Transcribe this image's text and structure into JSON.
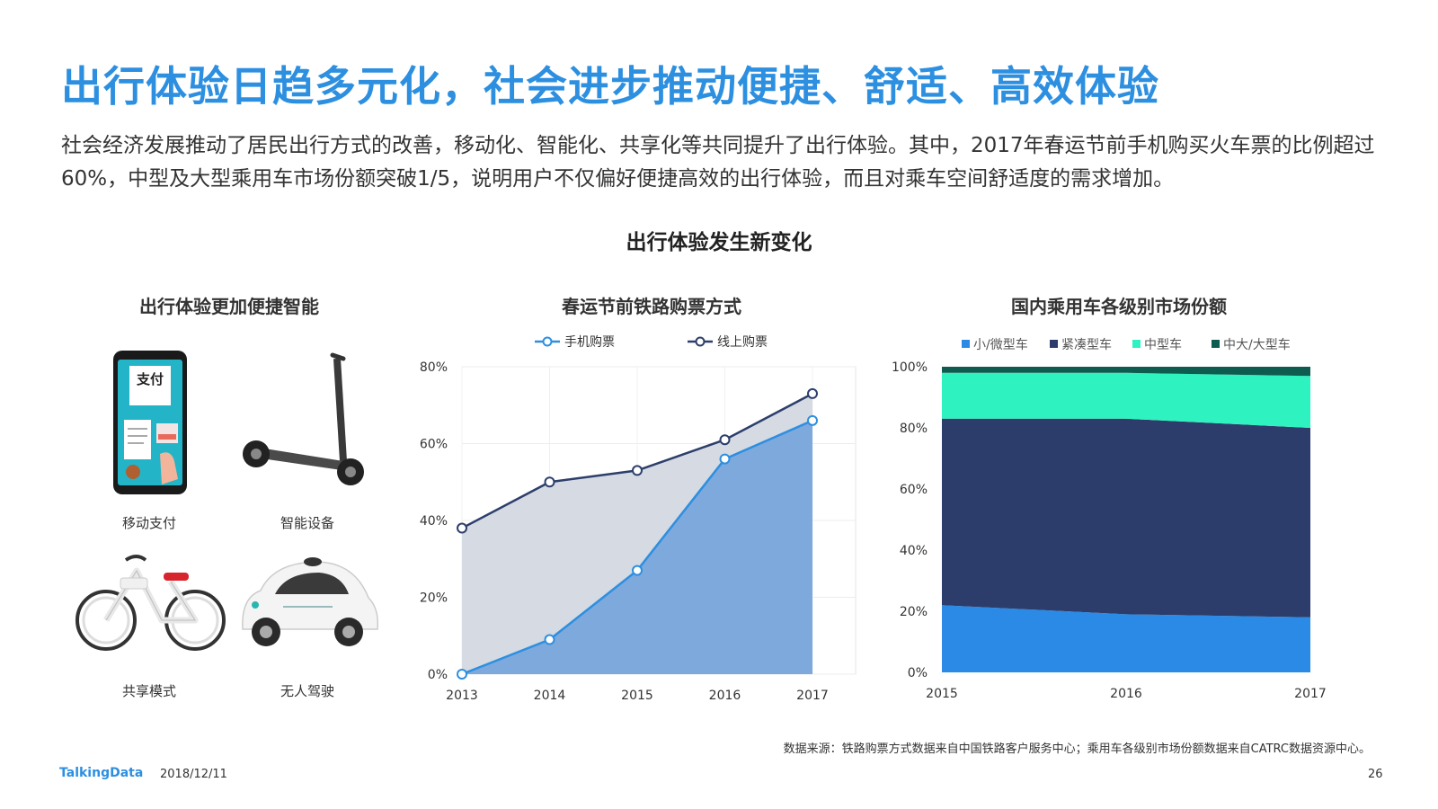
{
  "page": {
    "title": "出行体验日趋多元化，社会进步推动便捷、舒适、高效体验",
    "description": "社会经济发展推动了居民出行方式的改善，移动化、智能化、共享化等共同提升了出行体验。其中，2017年春运节前手机购买火车票的比例超过60%，中型及大型乘用车市场份额突破1/5，说明用户不仅偏好便捷高效的出行体验，而且对乘车空间舒适度的需求增加。",
    "section_title": "出行体验发生新变化",
    "source": "数据来源：铁路购票方式数据来自中国铁路客户服务中心；乘用车各级别市场份额数据来自CATRC数据资源中心。",
    "footer_logo": "TalkingData",
    "footer_date": "2018/12/11",
    "page_number": "26"
  },
  "left_panel": {
    "title": "出行体验更加便捷智能",
    "items": [
      {
        "label": "移动支付",
        "icon": "mobile-pay-icon"
      },
      {
        "label": "智能设备",
        "icon": "scooter-icon"
      },
      {
        "label": "共享模式",
        "icon": "bike-icon"
      },
      {
        "label": "无人驾驶",
        "icon": "self-driving-car-icon"
      }
    ],
    "phone_screen_text": "支付"
  },
  "chart_data": [
    {
      "type": "area",
      "title": "春运节前铁路购票方式",
      "categories": [
        "2013",
        "2014",
        "2015",
        "2016",
        "2017"
      ],
      "ylim": [
        0,
        80
      ],
      "yticks": [
        "0%",
        "20%",
        "40%",
        "60%",
        "80%"
      ],
      "legend_position": "top",
      "grid": true,
      "series": [
        {
          "name": "手机购票",
          "values": [
            0,
            9,
            27,
            56,
            66
          ],
          "color": "#2d8fe0",
          "fill": "#7ea9dc"
        },
        {
          "name": "线上购票",
          "values": [
            38,
            50,
            53,
            61,
            73
          ],
          "color": "#2c3e6b",
          "fill": "#d5dae3"
        }
      ]
    },
    {
      "type": "area",
      "stacked": true,
      "title": "国内乘用车各级别市场份额",
      "categories": [
        "2015",
        "2016",
        "2017"
      ],
      "ylim": [
        0,
        100
      ],
      "yticks": [
        "0%",
        "20%",
        "40%",
        "60%",
        "80%",
        "100%"
      ],
      "legend_position": "top",
      "series": [
        {
          "name": "小/微型车",
          "values": [
            22,
            19,
            18
          ],
          "color": "#2b8ae6"
        },
        {
          "name": "紧凑型车",
          "values": [
            61,
            64,
            62
          ],
          "color": "#2c3d6b"
        },
        {
          "name": "中型车",
          "values": [
            15,
            15,
            17
          ],
          "color": "#2ef2c0"
        },
        {
          "name": "中大/大型车",
          "values": [
            2,
            2,
            3
          ],
          "color": "#0d5c4f"
        }
      ]
    }
  ]
}
